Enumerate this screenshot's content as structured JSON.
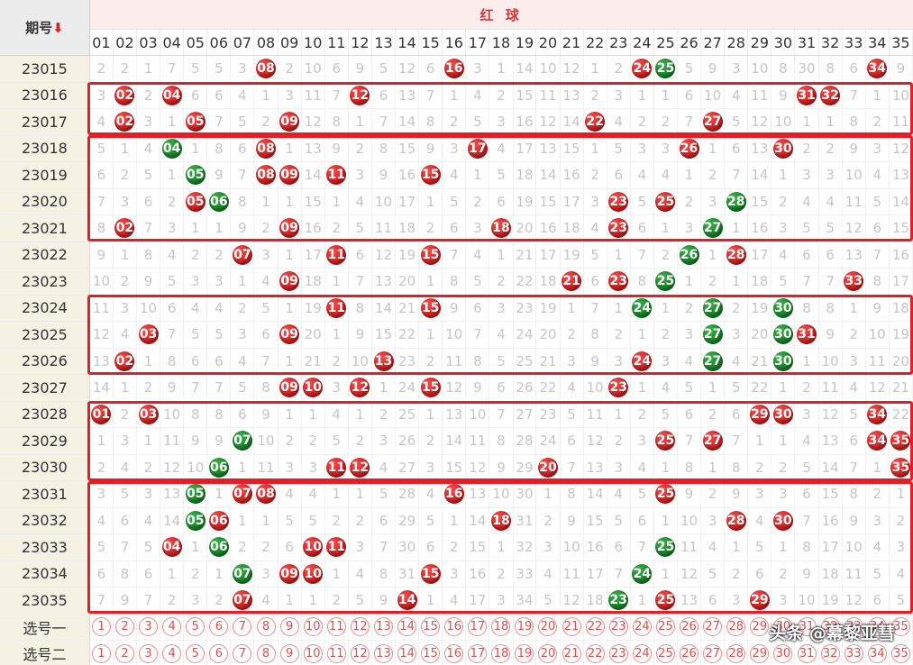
{
  "header": {
    "period_label": "期号",
    "sort_arrow": "⬇",
    "red_label": "红 球"
  },
  "columns": [
    "01",
    "02",
    "03",
    "04",
    "05",
    "06",
    "07",
    "08",
    "09",
    "10",
    "11",
    "12",
    "13",
    "14",
    "15",
    "16",
    "17",
    "18",
    "19",
    "20",
    "21",
    "22",
    "23",
    "24",
    "25",
    "26",
    "27",
    "28",
    "29",
    "30",
    "31",
    "32",
    "33",
    "34",
    "35"
  ],
  "rows": [
    {
      "period": "23015",
      "cells": [
        "2",
        "2",
        "1",
        "7",
        "5",
        "5",
        "3",
        "08",
        "2",
        "10",
        "6",
        "9",
        "5",
        "12",
        "6",
        "16",
        "3",
        "1",
        "14",
        "10",
        "12",
        "1",
        "2",
        "24",
        "25",
        "5",
        "9",
        "3",
        "10",
        "8",
        "30",
        "8",
        "6",
        "34",
        "9"
      ],
      "balls": {
        "08": "red",
        "16": "red",
        "24": "red",
        "25": "green",
        "34": "red"
      }
    },
    {
      "period": "23016",
      "cells": [
        "3",
        "02",
        "2",
        "04",
        "6",
        "6",
        "4",
        "1",
        "3",
        "11",
        "7",
        "12",
        "6",
        "13",
        "7",
        "1",
        "4",
        "2",
        "15",
        "11",
        "13",
        "2",
        "3",
        "1",
        "1",
        "6",
        "10",
        "4",
        "11",
        "9",
        "31",
        "32",
        "7",
        "1",
        "10"
      ],
      "balls": {
        "02": "red",
        "04": "red",
        "12": "red",
        "31": "red",
        "32": "red"
      }
    },
    {
      "period": "23017",
      "cells": [
        "4",
        "02",
        "3",
        "1",
        "05",
        "7",
        "5",
        "2",
        "09",
        "12",
        "8",
        "1",
        "7",
        "14",
        "8",
        "2",
        "5",
        "3",
        "16",
        "12",
        "14",
        "22",
        "4",
        "2",
        "2",
        "7",
        "27",
        "5",
        "12",
        "10",
        "1",
        "1",
        "8",
        "2",
        "11"
      ],
      "balls": {
        "02": "red",
        "05": "red",
        "09": "red",
        "22": "red",
        "27": "red"
      }
    },
    {
      "period": "23018",
      "cells": [
        "5",
        "1",
        "4",
        "04",
        "1",
        "8",
        "6",
        "08",
        "1",
        "13",
        "9",
        "2",
        "8",
        "15",
        "9",
        "3",
        "17",
        "4",
        "17",
        "13",
        "15",
        "1",
        "5",
        "3",
        "3",
        "26",
        "1",
        "6",
        "13",
        "30",
        "2",
        "2",
        "9",
        "3",
        "12"
      ],
      "balls": {
        "04": "green",
        "08": "red",
        "17": "red",
        "26": "red",
        "30": "red"
      }
    },
    {
      "period": "23019",
      "cells": [
        "6",
        "2",
        "5",
        "1",
        "05",
        "9",
        "7",
        "08",
        "09",
        "14",
        "11",
        "3",
        "9",
        "16",
        "15",
        "4",
        "1",
        "5",
        "18",
        "14",
        "16",
        "2",
        "6",
        "4",
        "4",
        "1",
        "2",
        "7",
        "14",
        "1",
        "3",
        "3",
        "10",
        "4",
        "13"
      ],
      "balls": {
        "05": "green",
        "08": "red",
        "09": "red",
        "11": "red",
        "15": "red"
      }
    },
    {
      "period": "23020",
      "cells": [
        "7",
        "3",
        "6",
        "2",
        "05",
        "06",
        "8",
        "1",
        "1",
        "15",
        "1",
        "4",
        "10",
        "17",
        "1",
        "5",
        "2",
        "6",
        "19",
        "15",
        "17",
        "3",
        "23",
        "5",
        "25",
        "2",
        "3",
        "28",
        "15",
        "2",
        "4",
        "4",
        "11",
        "5",
        "14"
      ],
      "balls": {
        "05": "red",
        "06": "green",
        "23": "red",
        "25": "red",
        "28": "green"
      }
    },
    {
      "period": "23021",
      "cells": [
        "8",
        "02",
        "7",
        "3",
        "1",
        "1",
        "9",
        "2",
        "09",
        "16",
        "2",
        "5",
        "11",
        "18",
        "2",
        "6",
        "3",
        "18",
        "20",
        "16",
        "18",
        "4",
        "23",
        "6",
        "1",
        "3",
        "27",
        "1",
        "16",
        "3",
        "5",
        "5",
        "12",
        "6",
        "15"
      ],
      "balls": {
        "02": "red",
        "09": "red",
        "18": "red",
        "23": "red",
        "27": "green"
      }
    },
    {
      "period": "23022",
      "cells": [
        "9",
        "1",
        "8",
        "4",
        "2",
        "2",
        "07",
        "3",
        "1",
        "17",
        "11",
        "6",
        "12",
        "19",
        "15",
        "7",
        "4",
        "1",
        "21",
        "17",
        "19",
        "5",
        "1",
        "7",
        "2",
        "26",
        "1",
        "28",
        "17",
        "4",
        "6",
        "6",
        "13",
        "7",
        "16"
      ],
      "balls": {
        "07": "red",
        "11": "red",
        "15": "red",
        "26": "green",
        "28": "red"
      }
    },
    {
      "period": "23023",
      "cells": [
        "10",
        "2",
        "9",
        "5",
        "3",
        "3",
        "1",
        "4",
        "09",
        "18",
        "1",
        "7",
        "13",
        "20",
        "1",
        "8",
        "5",
        "2",
        "22",
        "18",
        "21",
        "6",
        "23",
        "8",
        "25",
        "1",
        "2",
        "1",
        "18",
        "5",
        "7",
        "7",
        "33",
        "8",
        "17"
      ],
      "balls": {
        "09": "red",
        "21": "red",
        "23": "red",
        "25": "green",
        "33": "red"
      }
    },
    {
      "period": "23024",
      "cells": [
        "11",
        "3",
        "10",
        "6",
        "4",
        "4",
        "2",
        "5",
        "1",
        "19",
        "11",
        "8",
        "14",
        "21",
        "15",
        "9",
        "6",
        "3",
        "23",
        "19",
        "1",
        "7",
        "1",
        "24",
        "1",
        "2",
        "27",
        "2",
        "19",
        "30",
        "8",
        "8",
        "1",
        "9",
        "18"
      ],
      "balls": {
        "11": "red",
        "15": "red",
        "24": "green",
        "27": "green",
        "30": "green"
      }
    },
    {
      "period": "23025",
      "cells": [
        "12",
        "4",
        "03",
        "7",
        "5",
        "5",
        "3",
        "6",
        "09",
        "20",
        "1",
        "9",
        "15",
        "22",
        "1",
        "10",
        "7",
        "4",
        "24",
        "20",
        "2",
        "8",
        "2",
        "1",
        "2",
        "3",
        "27",
        "3",
        "20",
        "30",
        "31",
        "9",
        "2",
        "10",
        "19"
      ],
      "balls": {
        "03": "red",
        "09": "red",
        "27": "green",
        "30": "green",
        "31": "red"
      }
    },
    {
      "period": "23026",
      "cells": [
        "13",
        "02",
        "1",
        "8",
        "6",
        "6",
        "4",
        "7",
        "1",
        "21",
        "2",
        "10",
        "13",
        "23",
        "2",
        "11",
        "8",
        "5",
        "25",
        "21",
        "3",
        "9",
        "3",
        "24",
        "3",
        "4",
        "27",
        "4",
        "21",
        "30",
        "1",
        "10",
        "3",
        "11",
        "20"
      ],
      "balls": {
        "02": "red",
        "13": "red",
        "24": "red",
        "27": "green",
        "30": "green"
      }
    },
    {
      "period": "23027",
      "cells": [
        "14",
        "1",
        "2",
        "9",
        "7",
        "7",
        "5",
        "8",
        "09",
        "10",
        "3",
        "12",
        "1",
        "24",
        "15",
        "12",
        "9",
        "6",
        "26",
        "22",
        "4",
        "10",
        "23",
        "1",
        "4",
        "5",
        "1",
        "5",
        "22",
        "1",
        "2",
        "11",
        "4",
        "12",
        "21"
      ],
      "balls": {
        "09": "red",
        "10": "red",
        "12": "red",
        "15": "red",
        "23": "red"
      }
    },
    {
      "period": "23028",
      "cells": [
        "01",
        "2",
        "03",
        "10",
        "8",
        "8",
        "6",
        "9",
        "1",
        "1",
        "4",
        "1",
        "2",
        "25",
        "1",
        "13",
        "10",
        "7",
        "27",
        "23",
        "5",
        "11",
        "1",
        "2",
        "5",
        "6",
        "2",
        "6",
        "29",
        "30",
        "3",
        "12",
        "5",
        "34",
        "22"
      ],
      "balls": {
        "01": "red",
        "03": "red",
        "29": "red",
        "30": "red",
        "34": "red"
      }
    },
    {
      "period": "23029",
      "cells": [
        "1",
        "3",
        "1",
        "11",
        "9",
        "9",
        "07",
        "10",
        "2",
        "2",
        "5",
        "2",
        "3",
        "26",
        "2",
        "14",
        "11",
        "8",
        "28",
        "24",
        "6",
        "12",
        "2",
        "3",
        "25",
        "7",
        "27",
        "7",
        "1",
        "1",
        "4",
        "13",
        "6",
        "34",
        "35"
      ],
      "balls": {
        "07": "green",
        "25": "red",
        "27": "red",
        "34": "red",
        "35": "red"
      }
    },
    {
      "period": "23030",
      "cells": [
        "2",
        "4",
        "2",
        "12",
        "10",
        "06",
        "1",
        "11",
        "3",
        "3",
        "11",
        "12",
        "4",
        "27",
        "3",
        "15",
        "12",
        "9",
        "29",
        "20",
        "7",
        "13",
        "3",
        "4",
        "1",
        "8",
        "1",
        "8",
        "2",
        "2",
        "5",
        "14",
        "7",
        "1",
        "35"
      ],
      "balls": {
        "06": "green",
        "11": "red",
        "12": "red",
        "20": "red",
        "35": "red"
      }
    },
    {
      "period": "23031",
      "cells": [
        "3",
        "5",
        "3",
        "13",
        "05",
        "1",
        "07",
        "08",
        "4",
        "4",
        "1",
        "1",
        "5",
        "28",
        "4",
        "16",
        "13",
        "10",
        "30",
        "1",
        "8",
        "14",
        "4",
        "5",
        "25",
        "9",
        "2",
        "9",
        "3",
        "3",
        "6",
        "15",
        "8",
        "2",
        "1"
      ],
      "balls": {
        "05": "green",
        "07": "red",
        "08": "red",
        "16": "red",
        "25": "red"
      }
    },
    {
      "period": "23032",
      "cells": [
        "4",
        "6",
        "4",
        "14",
        "05",
        "06",
        "1",
        "1",
        "5",
        "5",
        "2",
        "2",
        "6",
        "29",
        "5",
        "1",
        "14",
        "18",
        "31",
        "2",
        "9",
        "15",
        "5",
        "6",
        "1",
        "10",
        "3",
        "28",
        "4",
        "30",
        "7",
        "16",
        "9",
        "3",
        "2"
      ],
      "balls": {
        "05": "green",
        "06": "red",
        "18": "red",
        "28": "red",
        "30": "red"
      }
    },
    {
      "period": "23033",
      "cells": [
        "5",
        "7",
        "5",
        "04",
        "1",
        "06",
        "2",
        "2",
        "6",
        "10",
        "11",
        "3",
        "7",
        "30",
        "6",
        "2",
        "15",
        "1",
        "32",
        "3",
        "10",
        "16",
        "6",
        "7",
        "25",
        "11",
        "4",
        "1",
        "5",
        "1",
        "8",
        "17",
        "10",
        "4",
        "3"
      ],
      "balls": {
        "04": "red",
        "06": "green",
        "10": "red",
        "11": "red",
        "25": "green"
      }
    },
    {
      "period": "23034",
      "cells": [
        "6",
        "8",
        "6",
        "1",
        "2",
        "1",
        "07",
        "3",
        "09",
        "10",
        "1",
        "4",
        "8",
        "31",
        "15",
        "3",
        "16",
        "2",
        "33",
        "4",
        "11",
        "17",
        "7",
        "24",
        "1",
        "12",
        "5",
        "2",
        "6",
        "2",
        "9",
        "18",
        "11",
        "5",
        "4"
      ],
      "balls": {
        "07": "green",
        "09": "red",
        "10": "red",
        "15": "red",
        "24": "green"
      }
    },
    {
      "period": "23035",
      "cells": [
        "7",
        "9",
        "7",
        "2",
        "3",
        "2",
        "07",
        "4",
        "1",
        "1",
        "2",
        "5",
        "9",
        "14",
        "1",
        "4",
        "17",
        "3",
        "34",
        "5",
        "12",
        "18",
        "23",
        "1",
        "25",
        "13",
        "6",
        "3",
        "29",
        "3",
        "10",
        "19",
        "12",
        "6",
        "5"
      ],
      "balls": {
        "07": "red",
        "14": "red",
        "23": "green",
        "25": "red",
        "29": "red"
      }
    }
  ],
  "selectors": [
    {
      "label": "选号一"
    },
    {
      "label": "选号二"
    }
  ],
  "watermark": "头条 @幕黎亚彗",
  "colors": {
    "red_ball": "#d22020",
    "green_ball": "#13862a",
    "frame": "#e21f26",
    "period_bg": "#f5f2e4",
    "red_header_bg": "#fcecec"
  }
}
